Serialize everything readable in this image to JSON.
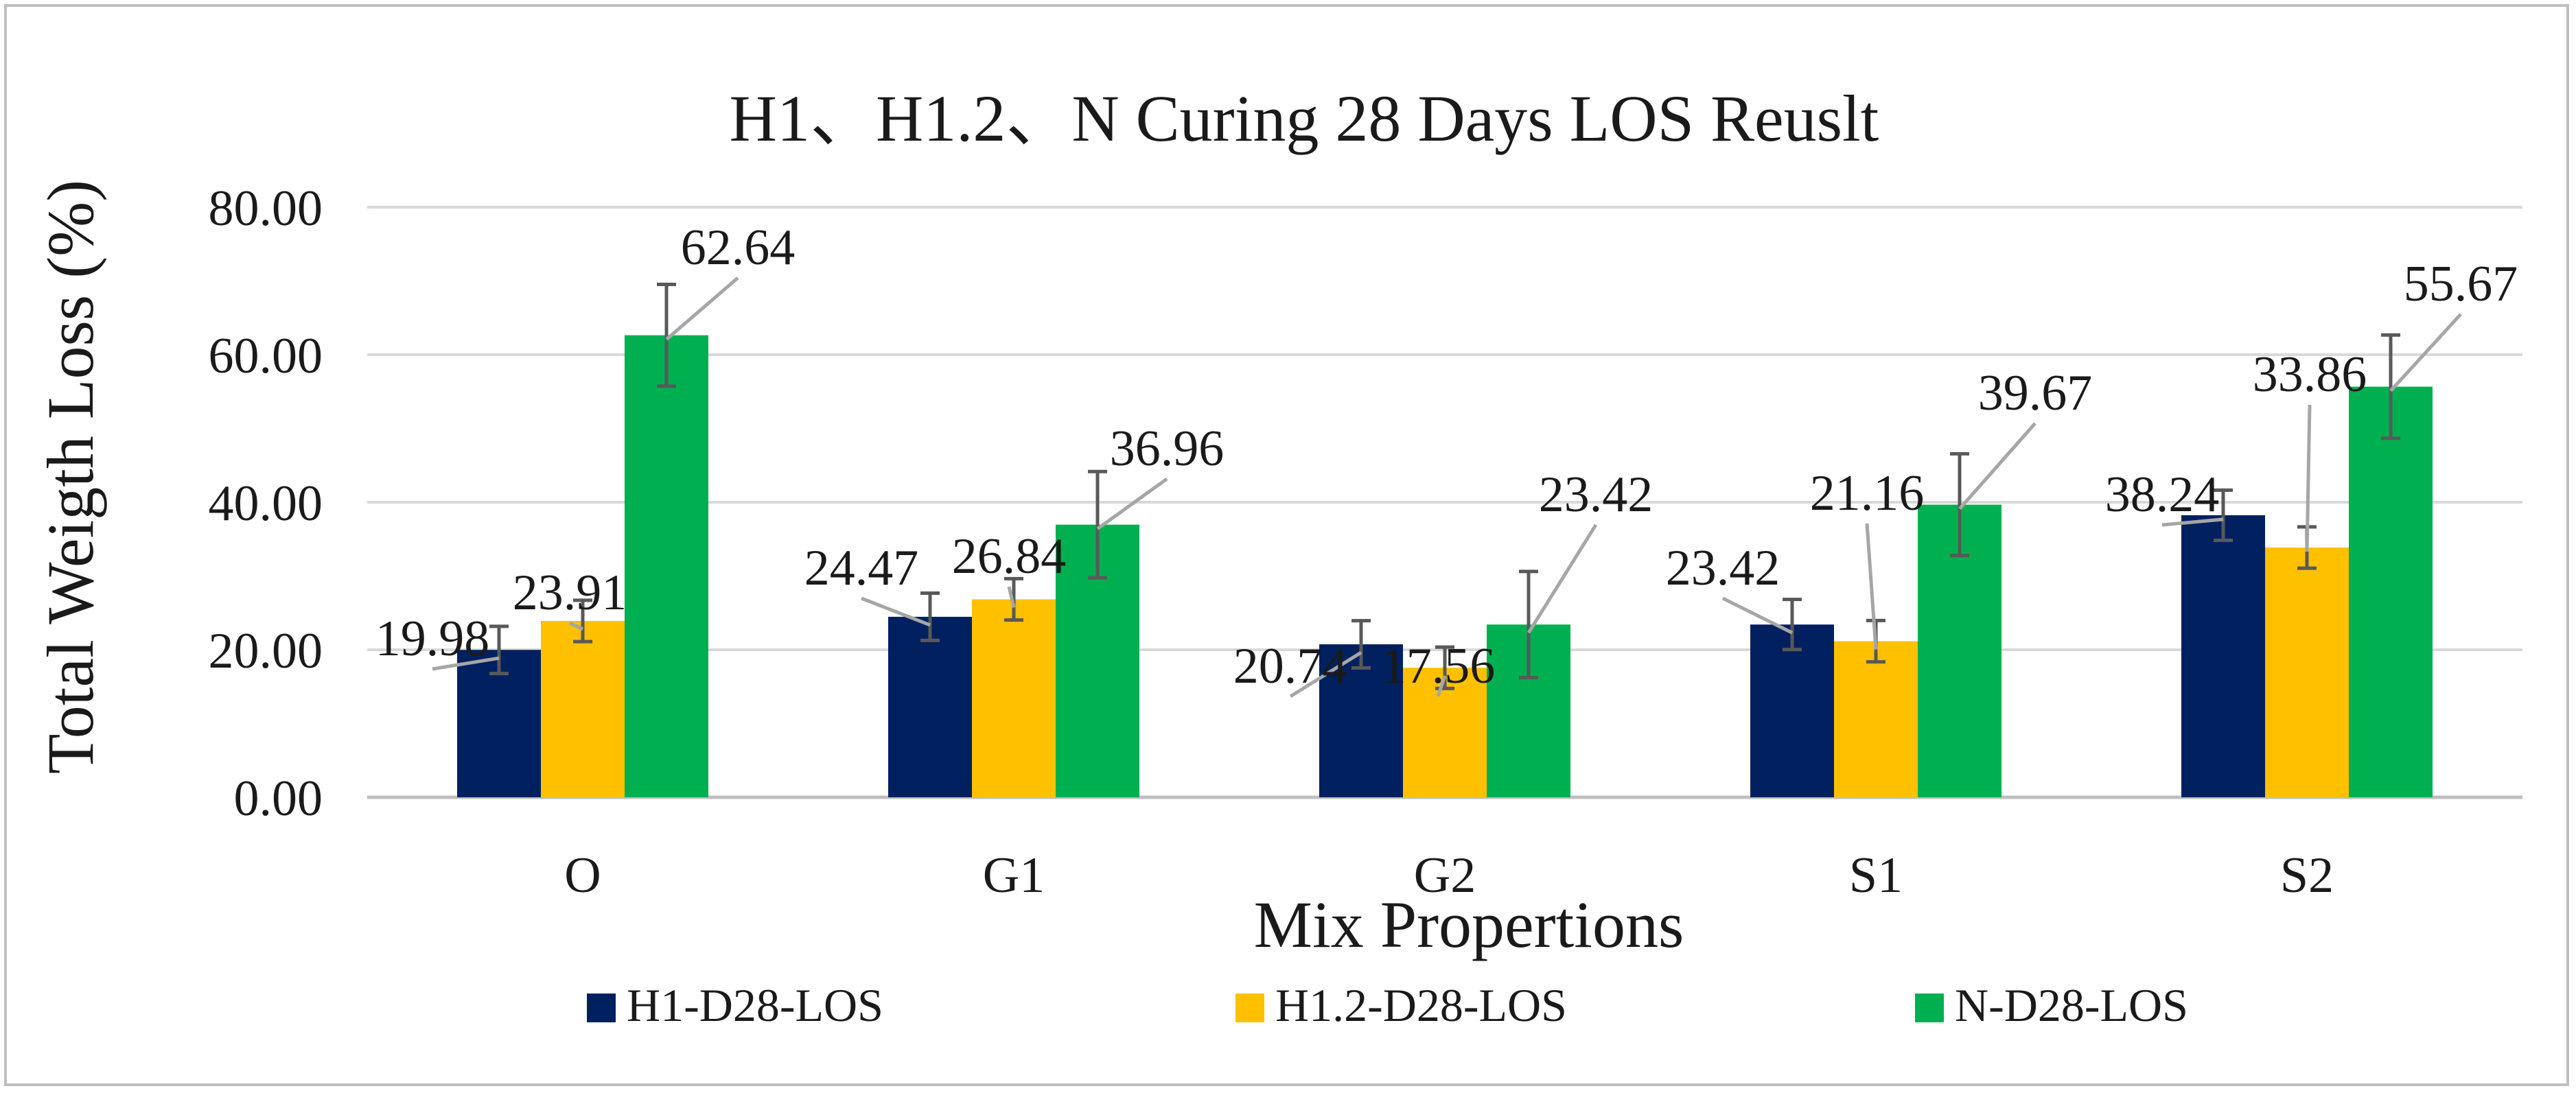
{
  "chart_data": {
    "type": "bar",
    "title": "H1、H1.2、N Curing 28 Days LOS Reuslt",
    "xlabel": "Mix Propertions",
    "ylabel": "Total Weigth Loss (%)",
    "ylim": [
      0,
      80
    ],
    "yticks": [
      "0.00",
      "20.00",
      "40.00",
      "60.00",
      "80.00"
    ],
    "grid": true,
    "legend_position": "bottom",
    "categories": [
      "O",
      "G1",
      "G2",
      "S1",
      "S2"
    ],
    "series": [
      {
        "name": "H1-D28-LOS",
        "color": "#002060",
        "values": [
          19.98,
          24.47,
          20.74,
          23.42,
          38.24
        ],
        "labels": [
          "19.98",
          "24.47",
          "20.74",
          "23.42",
          "38.24"
        ],
        "error": [
          3.2,
          3.2,
          3.2,
          3.4,
          3.4
        ]
      },
      {
        "name": "H1.2-D28-LOS",
        "color": "#FFC000",
        "values": [
          23.91,
          26.84,
          17.56,
          21.16,
          33.86
        ],
        "labels": [
          "23.91",
          "26.84",
          "17.56",
          "21.16",
          "33.86"
        ],
        "error": [
          2.8,
          2.8,
          2.8,
          2.8,
          2.8
        ]
      },
      {
        "name": "N-D28-LOS",
        "color": "#00B050",
        "values": [
          62.64,
          36.96,
          23.42,
          39.67,
          55.67
        ],
        "labels": [
          "62.64",
          "36.96",
          "23.42",
          "39.67",
          "55.67"
        ],
        "error": [
          6.9,
          7.2,
          7.2,
          6.9,
          7.0
        ]
      }
    ],
    "colors": {
      "gridline": "#d9d9d9",
      "axis": "#bfbfbf",
      "errorbar": "#595959",
      "leader": "#a6a6a6",
      "text": "#1a1a1a"
    }
  }
}
